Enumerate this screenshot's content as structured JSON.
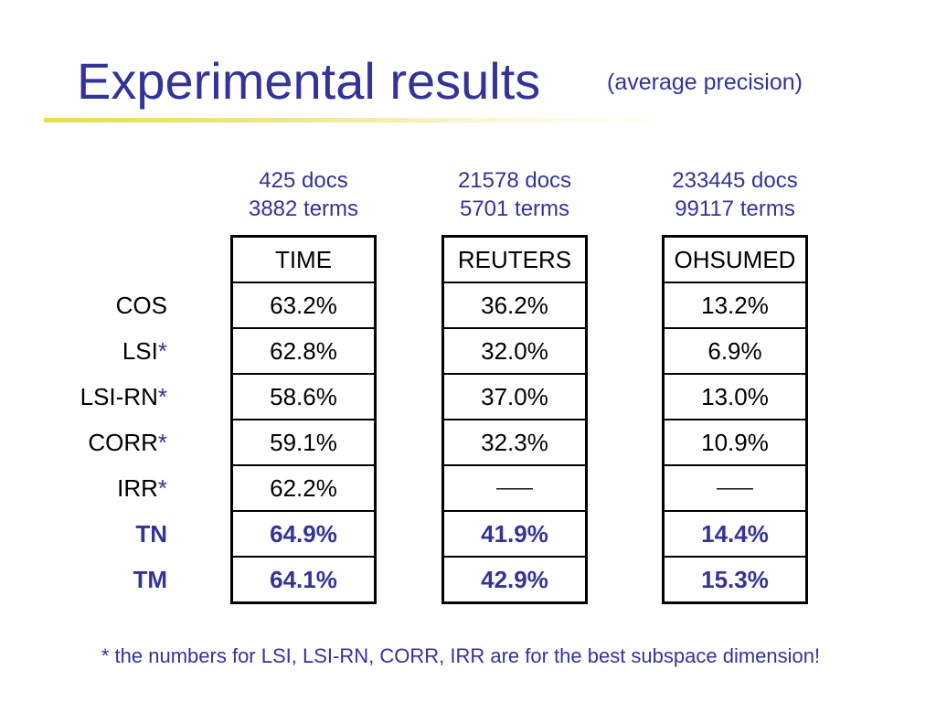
{
  "title": "Experimental results",
  "subtitle": "(average precision)",
  "row_labels": [
    {
      "label": "COS"
    },
    {
      "label": "LSI",
      "mark": "*"
    },
    {
      "label": "LSI-RN",
      "mark": "*"
    },
    {
      "label": "CORR",
      "mark": "*"
    },
    {
      "label": "IRR",
      "mark": "*"
    },
    {
      "label": "TN"
    },
    {
      "label": "TM"
    }
  ],
  "datasets": [
    {
      "docs": "425 docs",
      "terms": "3882 terms",
      "name": "TIME",
      "values": [
        "63.2%",
        "62.8%",
        "58.6%",
        "59.1%",
        "62.2%",
        "64.9%",
        "64.1%"
      ]
    },
    {
      "docs": "21578 docs",
      "terms": "5701 terms",
      "name": "REUTERS",
      "values": [
        "36.2%",
        "32.0%",
        "37.0%",
        "32.3%",
        "——",
        "41.9%",
        "42.9%"
      ]
    },
    {
      "docs": "233445 docs",
      "terms": "99117 terms",
      "name": "OHSUMED",
      "values": [
        "13.2%",
        "6.9%",
        "13.0%",
        "10.9%",
        "——",
        "14.4%",
        "15.3%"
      ]
    }
  ],
  "footnote": "* the numbers for LSI, LSI-RN, CORR, IRR are for the best subspace dimension!",
  "colors": {
    "accent": "#333399",
    "title_rule": "#e6dc55",
    "table_border": "#000000"
  }
}
